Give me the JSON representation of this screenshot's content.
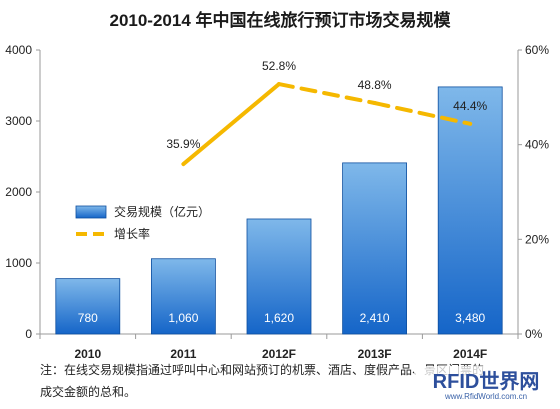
{
  "chart_data": {
    "type": "bar",
    "title": "2010-2014 年中国在线旅行预订市场交易规模",
    "categories": [
      "2010",
      "2011",
      "2012F",
      "2013F",
      "2014F"
    ],
    "series": [
      {
        "name": "交易规模（亿元）",
        "type": "bar",
        "axis": "left",
        "values": [
          780,
          1060,
          1620,
          2410,
          3480
        ],
        "value_labels": [
          "780",
          "1,060",
          "1,620",
          "2,410",
          "3,480"
        ]
      },
      {
        "name": "增长率",
        "type": "line",
        "axis": "right",
        "values": [
          null,
          35.9,
          52.8,
          48.8,
          44.4
        ],
        "value_labels": [
          "",
          "35.9%",
          "52.8%",
          "48.8%",
          "44.4%"
        ]
      }
    ],
    "y_left": {
      "ylim": [
        0,
        4000
      ],
      "ticks": [
        "0",
        "1000",
        "2000",
        "3000",
        "4000"
      ]
    },
    "y_right": {
      "ylim": [
        0,
        60
      ],
      "ticks": [
        "0%",
        "20%",
        "40%",
        "60%"
      ]
    },
    "legend_position": "left-middle",
    "grid": false,
    "colors": {
      "bar_top": "#7fb8ea",
      "bar_bottom": "#1565c8",
      "bar_edge": "#0d4e9e",
      "line": "#f5b800"
    }
  },
  "note": {
    "line1": "注：在线交易规模指通过呼叫中心和网站预订的机票、酒店、度假产品、景区门票的",
    "line2": "成交金额的总和。"
  },
  "watermark": {
    "text": "RFID世界网",
    "sub": "www.RfidWorld.com.cn"
  }
}
